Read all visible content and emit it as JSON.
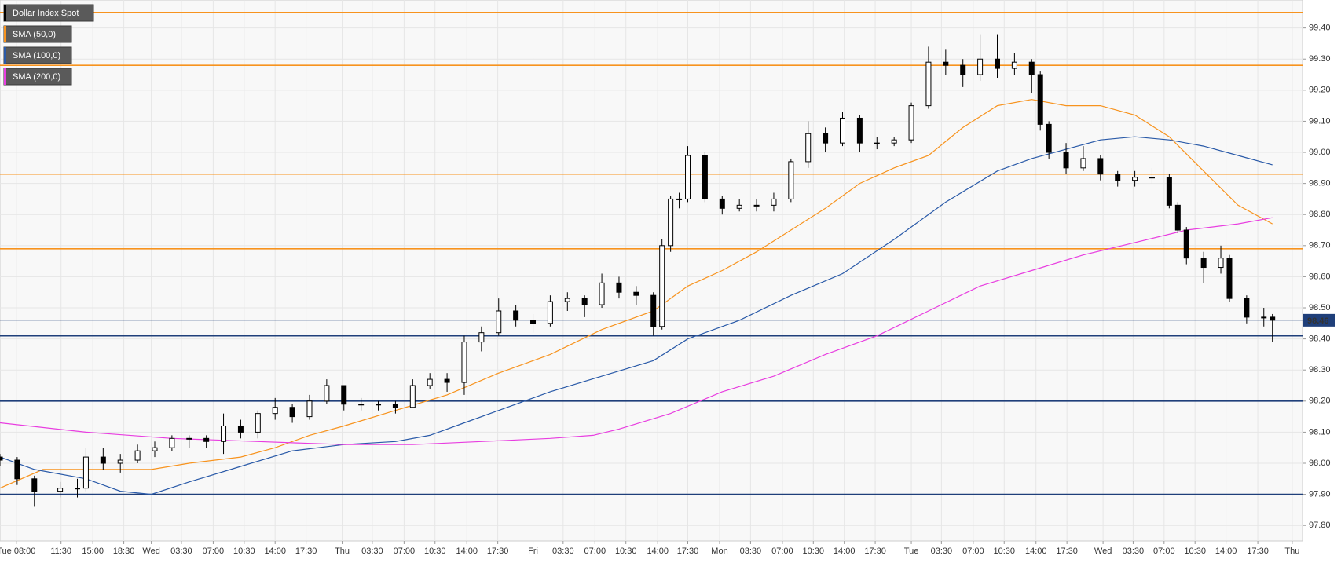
{
  "chart_data": {
    "type": "candlestick",
    "ylim": [
      97.75,
      99.49
    ],
    "xlim": [
      0,
      151.5
    ],
    "grid": true,
    "yticks": [
      {
        "value": 97.8,
        "label": "97.80"
      },
      {
        "value": 97.9,
        "label": "97.90"
      },
      {
        "value": 98.0,
        "label": "98.00"
      },
      {
        "value": 98.1,
        "label": "98.10"
      },
      {
        "value": 98.2,
        "label": "98.20"
      },
      {
        "value": 98.3,
        "label": "98.30"
      },
      {
        "value": 98.4,
        "label": "98.40"
      },
      {
        "value": 98.5,
        "label": "98.50"
      },
      {
        "value": 98.6,
        "label": "98.60"
      },
      {
        "value": 98.7,
        "label": "98.70"
      },
      {
        "value": 98.8,
        "label": "98.80"
      },
      {
        "value": 98.9,
        "label": "98.90"
      },
      {
        "value": 99.0,
        "label": "99.00"
      },
      {
        "value": 99.1,
        "label": "99.10"
      },
      {
        "value": 99.2,
        "label": "99.20"
      },
      {
        "value": 99.3,
        "label": "99.30"
      },
      {
        "value": 99.4,
        "label": "99.40"
      }
    ],
    "xticks": [
      {
        "value": 1.9,
        "label": "Tue 08:00"
      },
      {
        "value": 7.1,
        "label": "11:30"
      },
      {
        "value": 10.8,
        "label": "15:00"
      },
      {
        "value": 14.4,
        "label": "18:30"
      },
      {
        "value": 17.6,
        "label": "Wed"
      },
      {
        "value": 21.1,
        "label": "03:30"
      },
      {
        "value": 24.8,
        "label": "07:00"
      },
      {
        "value": 28.4,
        "label": "10:30"
      },
      {
        "value": 32,
        "label": "14:00"
      },
      {
        "value": 35.6,
        "label": "17:30"
      },
      {
        "value": 39.8,
        "label": "Thu"
      },
      {
        "value": 43.3,
        "label": "03:30"
      },
      {
        "value": 47,
        "label": "07:00"
      },
      {
        "value": 50.6,
        "label": "10:30"
      },
      {
        "value": 54.3,
        "label": "14:00"
      },
      {
        "value": 57.9,
        "label": "17:30"
      },
      {
        "value": 62,
        "label": "Fri"
      },
      {
        "value": 65.5,
        "label": "03:30"
      },
      {
        "value": 69.2,
        "label": "07:00"
      },
      {
        "value": 72.8,
        "label": "10:30"
      },
      {
        "value": 76.5,
        "label": "14:00"
      },
      {
        "value": 80,
        "label": "17:30"
      },
      {
        "value": 83.7,
        "label": "Mon"
      },
      {
        "value": 87.3,
        "label": "03:30"
      },
      {
        "value": 91,
        "label": "07:00"
      },
      {
        "value": 94.6,
        "label": "10:30"
      },
      {
        "value": 98.2,
        "label": "14:00"
      },
      {
        "value": 101.8,
        "label": "17:30"
      },
      {
        "value": 106,
        "label": "Tue"
      },
      {
        "value": 109.5,
        "label": "03:30"
      },
      {
        "value": 113.2,
        "label": "07:00"
      },
      {
        "value": 116.8,
        "label": "10:30"
      },
      {
        "value": 120.5,
        "label": "14:00"
      },
      {
        "value": 124.1,
        "label": "17:30"
      },
      {
        "value": 128.3,
        "label": "Wed"
      },
      {
        "value": 131.8,
        "label": "03:30"
      },
      {
        "value": 135.4,
        "label": "07:00"
      },
      {
        "value": 139,
        "label": "10:30"
      },
      {
        "value": 142.6,
        "label": "14:00"
      },
      {
        "value": 146.3,
        "label": "17:30"
      },
      {
        "value": 150.3,
        "label": "Thu"
      }
    ],
    "series": [
      {
        "name": "Dollar Index Spot",
        "color": "#000000",
        "x": [
          0,
          2,
          4,
          7,
          9,
          10,
          12,
          14,
          16,
          18,
          20,
          22,
          24,
          26,
          28,
          30,
          32,
          34,
          36,
          38,
          40,
          42,
          44,
          46,
          48,
          50,
          52,
          54,
          56,
          58,
          60,
          62,
          64,
          66,
          68,
          70,
          72,
          74,
          76,
          77,
          78,
          79,
          80,
          82,
          84,
          86,
          88,
          90,
          92,
          94,
          96,
          98,
          100,
          102,
          104,
          106,
          108,
          110,
          112,
          114,
          116,
          118,
          120,
          121,
          122,
          124,
          126,
          128,
          130,
          132,
          134,
          136,
          137,
          138,
          140,
          142,
          143,
          145,
          147,
          148
        ],
        "open": [
          98.02,
          98.01,
          97.95,
          97.91,
          97.92,
          97.92,
          98.02,
          98.0,
          98.01,
          98.04,
          98.05,
          98.08,
          98.08,
          98.07,
          98.12,
          98.1,
          98.16,
          98.18,
          98.15,
          98.2,
          98.25,
          98.19,
          98.19,
          98.19,
          98.18,
          98.25,
          98.27,
          98.26,
          98.39,
          98.42,
          98.49,
          98.46,
          98.45,
          98.52,
          98.53,
          98.51,
          98.58,
          98.55,
          98.54,
          98.44,
          98.7,
          98.85,
          98.85,
          98.99,
          98.85,
          98.82,
          98.83,
          98.83,
          98.85,
          98.97,
          99.06,
          99.03,
          99.11,
          99.03,
          99.03,
          99.04,
          99.15,
          99.29,
          99.28,
          99.25,
          99.3,
          99.27,
          99.29,
          99.25,
          99.09,
          99.0,
          98.95,
          98.98,
          98.93,
          98.91,
          98.92,
          98.92,
          98.83,
          98.75,
          98.66,
          98.63,
          98.66,
          98.53,
          98.47,
          98.47
        ],
        "high": [
          98.03,
          98.02,
          97.96,
          97.94,
          97.95,
          98.05,
          98.05,
          98.03,
          98.06,
          98.07,
          98.09,
          98.09,
          98.09,
          98.16,
          98.14,
          98.17,
          98.21,
          98.19,
          98.22,
          98.27,
          98.25,
          98.21,
          98.2,
          98.2,
          98.27,
          98.29,
          98.29,
          98.41,
          98.44,
          98.53,
          98.51,
          98.48,
          98.54,
          98.55,
          98.54,
          98.61,
          98.6,
          98.57,
          98.55,
          98.72,
          98.86,
          98.87,
          99.02,
          99.0,
          98.86,
          98.85,
          98.85,
          98.87,
          98.98,
          99.1,
          99.08,
          99.13,
          99.12,
          99.05,
          99.05,
          99.16,
          99.34,
          99.33,
          99.3,
          99.38,
          99.38,
          99.32,
          99.3,
          99.26,
          99.1,
          99.03,
          99.02,
          98.99,
          98.94,
          98.94,
          98.95,
          98.93,
          98.84,
          98.76,
          98.68,
          98.7,
          98.67,
          98.54,
          98.5,
          98.48
        ],
        "low": [
          97.99,
          97.93,
          97.86,
          97.89,
          97.89,
          97.91,
          97.98,
          97.97,
          98.0,
          98.02,
          98.04,
          98.05,
          98.05,
          98.03,
          98.08,
          98.08,
          98.14,
          98.13,
          98.14,
          98.19,
          98.17,
          98.17,
          98.17,
          98.16,
          98.18,
          98.24,
          98.23,
          98.22,
          98.36,
          98.41,
          98.44,
          98.42,
          98.44,
          98.49,
          98.47,
          98.5,
          98.53,
          98.51,
          98.41,
          98.43,
          98.68,
          98.82,
          98.84,
          98.84,
          98.8,
          98.81,
          98.81,
          98.81,
          98.84,
          98.95,
          99.0,
          99.02,
          99.0,
          99.01,
          99.02,
          99.03,
          99.14,
          99.25,
          99.21,
          99.23,
          99.24,
          99.25,
          99.19,
          99.07,
          98.98,
          98.93,
          98.94,
          98.91,
          98.89,
          98.89,
          98.9,
          98.82,
          98.74,
          98.64,
          98.58,
          98.61,
          98.52,
          98.45,
          98.44,
          98.39
        ],
        "close": [
          98.01,
          97.95,
          97.91,
          97.92,
          97.92,
          98.02,
          98.0,
          98.01,
          98.04,
          98.05,
          98.08,
          98.08,
          98.07,
          98.12,
          98.1,
          98.16,
          98.18,
          98.15,
          98.2,
          98.25,
          98.19,
          98.19,
          98.19,
          98.18,
          98.25,
          98.27,
          98.26,
          98.39,
          98.42,
          98.49,
          98.46,
          98.45,
          98.52,
          98.53,
          98.51,
          98.58,
          98.55,
          98.54,
          98.44,
          98.7,
          98.85,
          98.85,
          98.99,
          98.85,
          98.82,
          98.83,
          98.83,
          98.85,
          98.97,
          99.06,
          99.03,
          99.11,
          99.03,
          99.03,
          99.04,
          99.15,
          99.29,
          99.28,
          99.25,
          99.3,
          99.27,
          99.29,
          99.25,
          99.09,
          99.0,
          98.95,
          98.98,
          98.93,
          98.91,
          98.92,
          98.92,
          98.83,
          98.75,
          98.66,
          98.63,
          98.66,
          98.53,
          98.47,
          98.47,
          98.46
        ]
      }
    ],
    "lines": [
      {
        "name": "SMA (50,0)",
        "color": "#f7931e",
        "x": [
          0,
          5,
          10,
          17.6,
          22,
          28,
          32,
          36,
          40,
          46,
          52,
          58,
          64,
          70,
          76,
          80,
          84,
          88,
          92,
          96,
          100,
          104,
          108,
          112,
          116,
          120,
          124,
          128,
          132,
          136,
          140,
          144,
          148
        ],
        "values": [
          97.92,
          97.98,
          97.98,
          97.98,
          98.0,
          98.02,
          98.05,
          98.09,
          98.12,
          98.17,
          98.22,
          98.29,
          98.35,
          98.43,
          98.49,
          98.57,
          98.62,
          98.68,
          98.75,
          98.82,
          98.9,
          98.95,
          98.99,
          99.08,
          99.15,
          99.17,
          99.15,
          99.15,
          99.12,
          99.05,
          98.94,
          98.83,
          98.77
        ]
      },
      {
        "name": "SMA (100,0)",
        "color": "#2a5aa8",
        "x": [
          0,
          4,
          10,
          14,
          17.6,
          22,
          28,
          34,
          40,
          46,
          50,
          54,
          60,
          64,
          70,
          76,
          80,
          86,
          92,
          98,
          104,
          110,
          116,
          120,
          124,
          128,
          132,
          136,
          140,
          144,
          148
        ],
        "values": [
          98.02,
          97.98,
          97.95,
          97.91,
          97.9,
          97.94,
          97.99,
          98.04,
          98.06,
          98.07,
          98.09,
          98.13,
          98.19,
          98.23,
          98.28,
          98.33,
          98.4,
          98.46,
          98.54,
          98.61,
          98.72,
          98.84,
          98.94,
          98.98,
          99.01,
          99.04,
          99.05,
          99.04,
          99.02,
          98.99,
          98.96
        ]
      },
      {
        "name": "SMA (200,0)",
        "color": "#e83ee0",
        "x": [
          0,
          10,
          20,
          30,
          40,
          48,
          56,
          64,
          69,
          72,
          78,
          84,
          90,
          96,
          102,
          108,
          114,
          120,
          126,
          132,
          138,
          144,
          148
        ],
        "values": [
          98.13,
          98.1,
          98.08,
          98.07,
          98.06,
          98.06,
          98.07,
          98.08,
          98.09,
          98.11,
          98.16,
          98.23,
          98.28,
          98.35,
          98.41,
          98.49,
          98.57,
          98.62,
          98.67,
          98.71,
          98.75,
          98.77,
          98.79
        ]
      }
    ],
    "horizontal_levels": [
      {
        "color": "#f7931e",
        "values": [
          99.45,
          99.28,
          98.93,
          98.69
        ]
      },
      {
        "color": "#1f3f7a",
        "values": [
          98.41,
          98.2,
          97.9
        ]
      }
    ],
    "last_price": 98.46,
    "last_price_color": "#1f3f7a"
  }
}
